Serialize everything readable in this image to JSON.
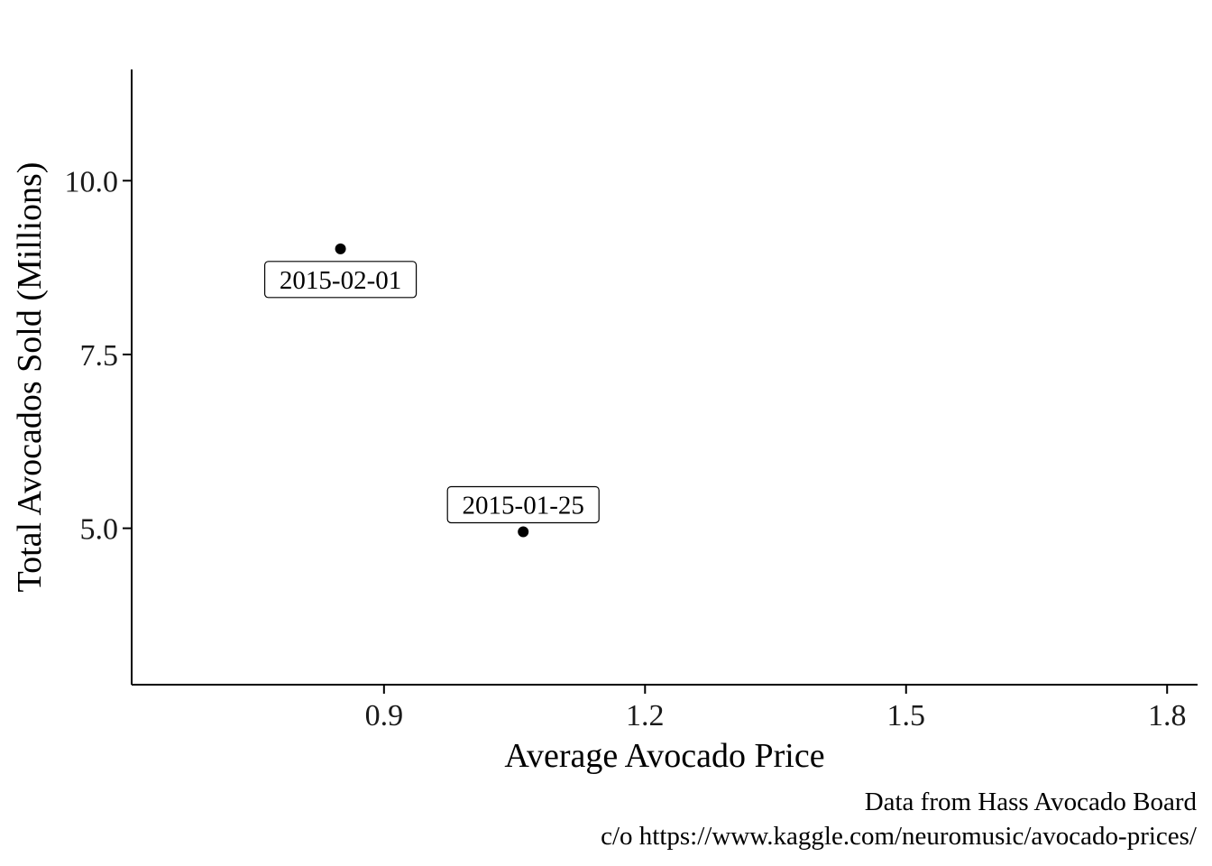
{
  "chart_data": {
    "type": "scatter",
    "xlabel": "Average Avocado Price",
    "ylabel": "Total Avocados Sold (Millions)",
    "xlim": [
      0.61,
      1.835
    ],
    "ylim": [
      2.75,
      11.6
    ],
    "x_ticks": [
      0.9,
      1.2,
      1.5,
      1.8
    ],
    "x_tick_labels": [
      "0.9",
      "1.2",
      "1.5",
      "1.8"
    ],
    "y_ticks": [
      5.0,
      7.5,
      10.0
    ],
    "y_tick_labels": [
      "5.0",
      "7.5",
      "10.0"
    ],
    "grid": false,
    "points": [
      {
        "x": 1.06,
        "y": 4.95,
        "label": "2015-01-25"
      },
      {
        "x": 0.85,
        "y": 9.02,
        "label": "2015-02-01"
      }
    ],
    "caption_lines": [
      "Data from Hass Avocado Board",
      "c/o https://www.kaggle.com/neuromusic/avocado-prices/"
    ]
  }
}
